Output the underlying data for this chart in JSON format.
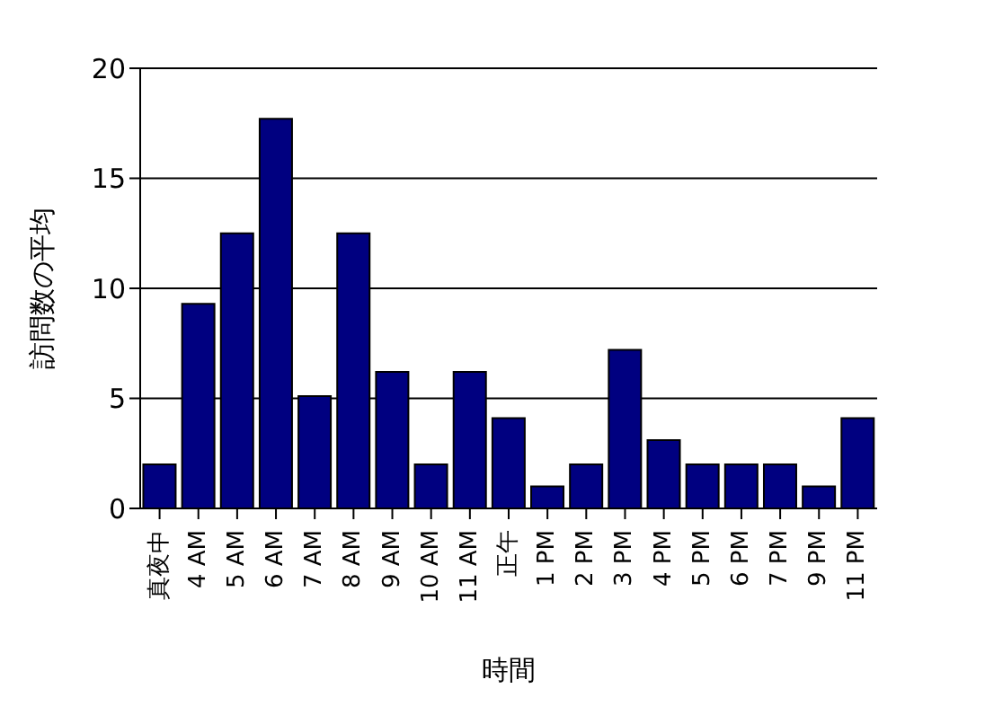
{
  "chart_data": {
    "type": "bar",
    "xlabel": "時間",
    "ylabel": "訪問数の平均",
    "categories": [
      "真夜中",
      "4 AM",
      "5 AM",
      "6 AM",
      "7 AM",
      "8 AM",
      "9 AM",
      "10 AM",
      "11 AM",
      "正午",
      "1 PM",
      "2 PM",
      "3 PM",
      "4 PM",
      "5 PM",
      "6 PM",
      "7 PM",
      "9 PM",
      "11 PM"
    ],
    "values": [
      2,
      9.3,
      12.5,
      17.7,
      5.1,
      12.5,
      6.2,
      2,
      6.2,
      4.1,
      1,
      2,
      7.2,
      3.1,
      2,
      2,
      2,
      1,
      4.1
    ],
    "color": "#000080",
    "ylim": [
      0,
      20
    ],
    "yticks": [
      0,
      5,
      10,
      15,
      20
    ],
    "grid": "y"
  }
}
